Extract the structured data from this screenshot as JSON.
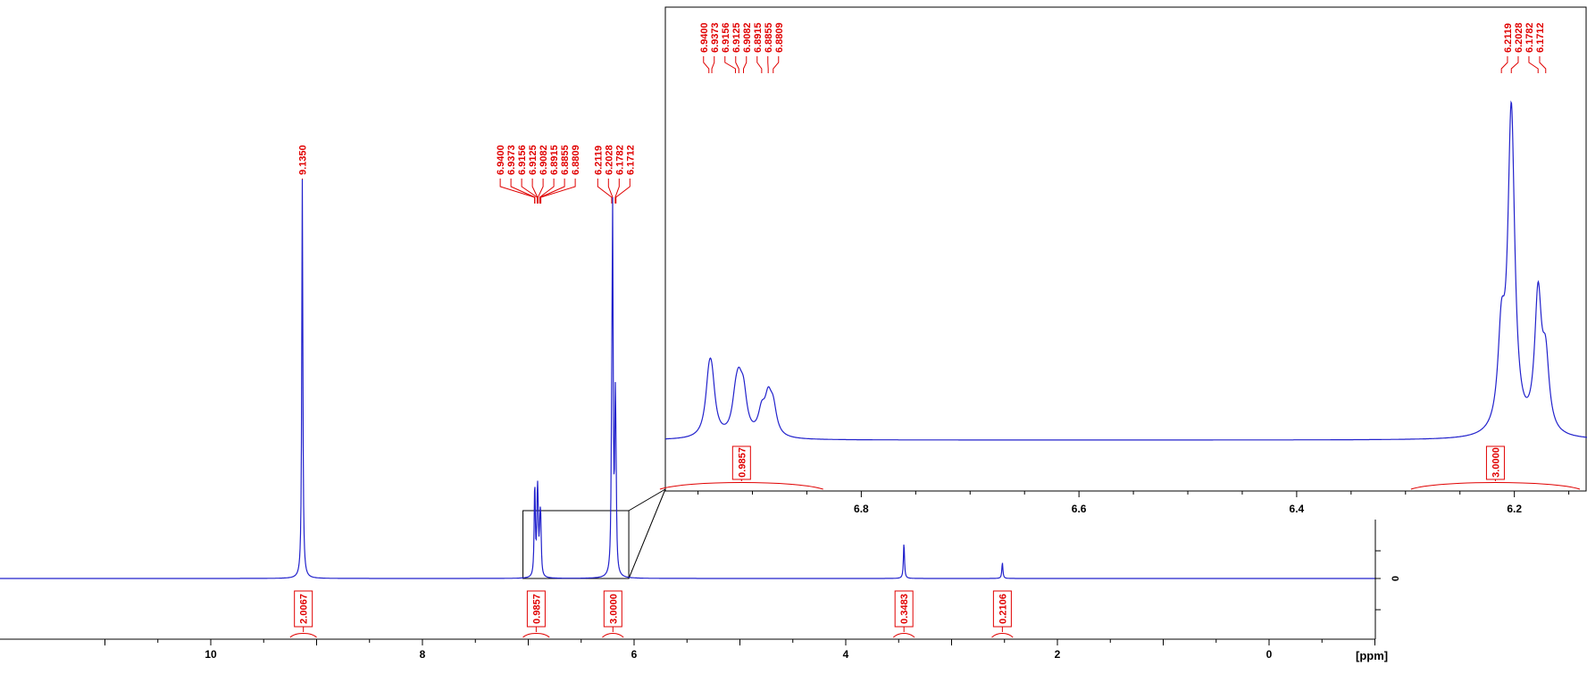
{
  "chart_data": {
    "type": "line",
    "xlabel": "[ppm]",
    "xlim": [
      12.0,
      -1.0
    ],
    "x_ticks": [
      "10",
      "8",
      "6",
      "4",
      "2",
      "0"
    ],
    "y_ticks": [
      "0"
    ],
    "grid": false,
    "colors": {
      "spectrum": "#2222cc",
      "annotation": "#e00000",
      "axis": "#000000"
    },
    "peaks": [
      {
        "ppm": 9.135,
        "height": 1.0,
        "label": "9.1350"
      },
      {
        "ppm": 6.94,
        "height": 0.12,
        "label": "6.9400"
      },
      {
        "ppm": 6.9373,
        "height": 0.12,
        "label": "6.9373"
      },
      {
        "ppm": 6.9156,
        "height": 0.07,
        "label": "6.9156"
      },
      {
        "ppm": 6.9125,
        "height": 0.1,
        "label": "6.9125"
      },
      {
        "ppm": 6.9082,
        "height": 0.1,
        "label": "6.9082"
      },
      {
        "ppm": 6.8915,
        "height": 0.06,
        "label": "6.8915"
      },
      {
        "ppm": 6.8855,
        "height": 0.09,
        "label": "6.8855"
      },
      {
        "ppm": 6.8809,
        "height": 0.07,
        "label": "6.8809"
      },
      {
        "ppm": 6.2119,
        "height": 0.24,
        "label": "6.2119"
      },
      {
        "ppm": 6.2028,
        "height": 0.86,
        "label": "6.2028"
      },
      {
        "ppm": 6.1782,
        "height": 0.36,
        "label": "6.1782"
      },
      {
        "ppm": 6.1712,
        "height": 0.18,
        "label": "6.1712"
      },
      {
        "ppm": 3.45,
        "height": 0.09,
        "label": ""
      },
      {
        "ppm": 2.52,
        "height": 0.04,
        "label": ""
      }
    ],
    "integrals": [
      {
        "from": 9.25,
        "to": 9.0,
        "value": "2.0067"
      },
      {
        "from": 7.05,
        "to": 6.8,
        "value": "0.9857"
      },
      {
        "from": 6.3,
        "to": 6.1,
        "value": "3.0000"
      },
      {
        "from": 3.55,
        "to": 3.35,
        "value": "0.3483"
      },
      {
        "from": 2.62,
        "to": 2.42,
        "value": "0.2106"
      }
    ],
    "inset": {
      "xlim": [
        6.98,
        6.13
      ],
      "x_ticks": [
        "6.8",
        "6.6",
        "6.4",
        "6.2"
      ],
      "integrals": [
        {
          "from": 6.985,
          "to": 6.835,
          "value": "0.9857"
        },
        {
          "from": 6.295,
          "to": 6.13,
          "value": "3.0000"
        }
      ]
    }
  }
}
